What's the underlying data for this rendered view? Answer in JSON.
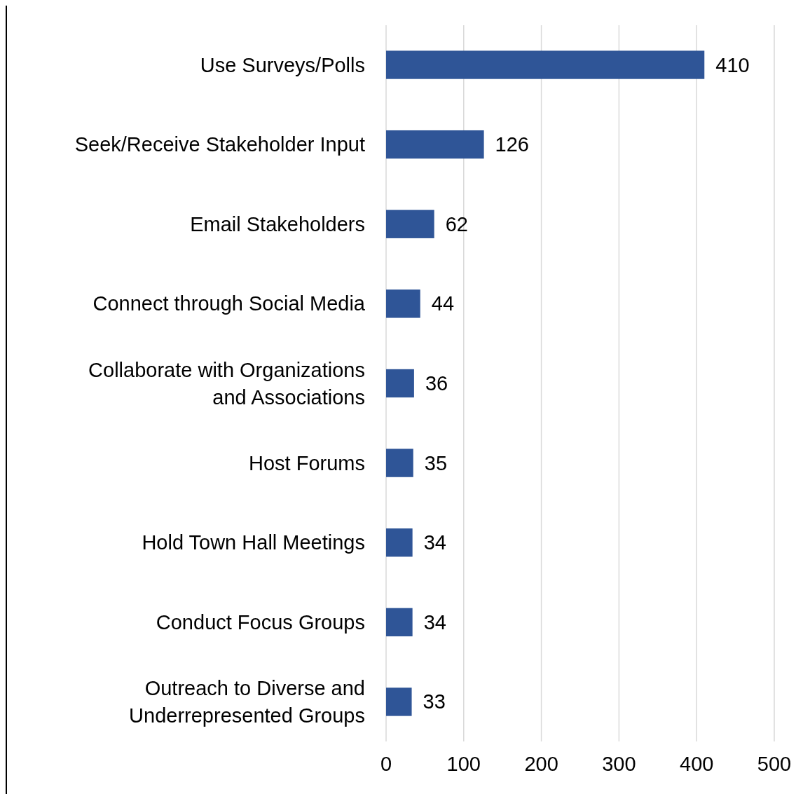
{
  "chart_data": {
    "type": "bar",
    "orientation": "horizontal",
    "categories": [
      "Use Surveys/Polls",
      "Seek/Receive Stakeholder Input",
      "Email Stakeholders",
      "Connect through Social Media",
      "Collaborate with Organizations and Associations",
      "Host Forums",
      "Hold Town Hall Meetings",
      "Conduct Focus Groups",
      "Outreach to Diverse and Underrepresented Groups"
    ],
    "values": [
      410,
      126,
      62,
      44,
      36,
      35,
      34,
      34,
      33
    ],
    "color": "#2f5597",
    "xlim": [
      0,
      500
    ],
    "xticks": [
      0,
      100,
      200,
      300,
      400,
      500
    ],
    "grid": "x",
    "data_labels": true
  }
}
